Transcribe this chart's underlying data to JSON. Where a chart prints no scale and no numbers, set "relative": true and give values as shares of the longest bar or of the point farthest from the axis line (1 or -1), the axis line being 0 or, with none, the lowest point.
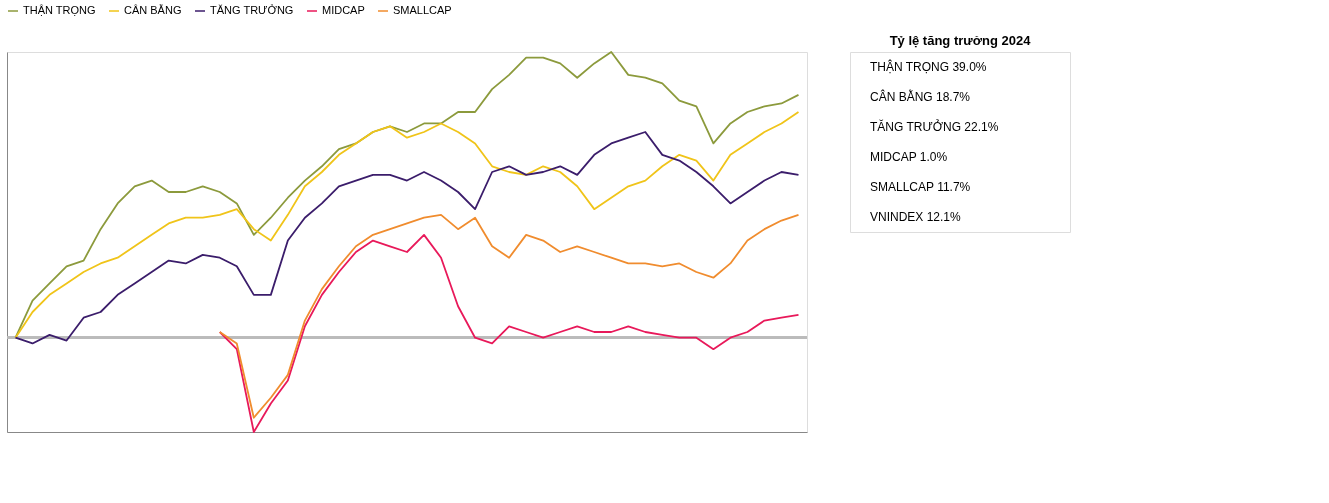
{
  "chart_data": {
    "type": "line",
    "relative": true,
    "legend": "top",
    "grid": false,
    "marker": "none",
    "line_style": "solid",
    "title": "Tỷ lệ tăng trưởng 2024",
    "annotations": [
      "THẬN TRỌNG 39.0%",
      "CÂN BẰNG 18.7%",
      "TĂNG TRƯỞNG 22.1%",
      "MIDCAP 1.0%",
      "SMALLCAP 11.7%",
      "VNINDEX 12.1%"
    ],
    "categories": [
      null,
      null,
      null,
      null,
      null,
      null,
      null,
      null,
      null,
      null,
      null,
      null,
      null,
      null,
      null,
      null,
      null,
      null,
      null,
      null,
      null,
      null,
      null,
      null,
      null,
      null,
      null,
      null,
      null,
      null,
      null,
      null,
      null,
      null,
      null,
      null,
      null,
      null,
      null,
      null,
      null,
      null,
      null,
      null,
      null,
      null,
      null
    ],
    "series": [
      {
        "name": "THẬN TRỌNG",
        "color": "#8c9a3c",
        "values": [
          0,
          0.13,
          0.19,
          0.25,
          0.27,
          0.38,
          0.47,
          0.53,
          0.55,
          0.51,
          0.51,
          0.53,
          0.51,
          0.47,
          0.36,
          0.42,
          0.49,
          0.55,
          0.6,
          0.66,
          0.68,
          0.72,
          0.74,
          0.72,
          0.75,
          0.75,
          0.79,
          0.79,
          0.87,
          0.92,
          0.98,
          0.98,
          0.96,
          0.91,
          0.96,
          1,
          0.92,
          0.91,
          0.89,
          0.83,
          0.81,
          0.68,
          0.75,
          0.79,
          0.81,
          0.82,
          0.85
        ]
      },
      {
        "name": "CÂN BẰNG",
        "color": "#f0c419",
        "values": [
          0,
          0.09,
          0.15,
          0.19,
          0.23,
          0.26,
          0.28,
          0.32,
          0.36,
          0.4,
          0.42,
          0.42,
          0.43,
          0.45,
          0.38,
          0.34,
          0.43,
          0.53,
          0.58,
          0.64,
          0.68,
          0.72,
          0.74,
          0.7,
          0.72,
          0.75,
          0.72,
          0.68,
          0.6,
          0.58,
          0.57,
          0.6,
          0.58,
          0.53,
          0.45,
          0.49,
          0.53,
          0.55,
          0.6,
          0.64,
          0.62,
          0.55,
          0.64,
          0.68,
          0.72,
          0.75,
          0.79
        ]
      },
      {
        "name": "TĂNG TRƯỞNG",
        "color": "#3b1d6b",
        "values": [
          0,
          -0.02,
          0.01,
          -0.01,
          0.07,
          0.09,
          0.15,
          0.19,
          0.23,
          0.27,
          0.26,
          0.29,
          0.28,
          0.25,
          0.15,
          0.15,
          0.34,
          0.42,
          0.47,
          0.53,
          0.55,
          0.57,
          0.57,
          0.55,
          0.58,
          0.55,
          0.51,
          0.45,
          0.58,
          0.6,
          0.57,
          0.58,
          0.6,
          0.57,
          0.64,
          0.68,
          0.7,
          0.72,
          0.64,
          0.62,
          0.58,
          0.53,
          0.47,
          0.51,
          0.55,
          0.58,
          0.57
        ]
      },
      {
        "name": "MIDCAP",
        "color": "#e8195a",
        "values": [
          null,
          null,
          null,
          null,
          null,
          null,
          null,
          null,
          null,
          null,
          null,
          null,
          0.02,
          -0.04,
          -0.33,
          -0.23,
          -0.15,
          0.04,
          0.15,
          0.23,
          0.3,
          0.34,
          0.32,
          0.3,
          0.36,
          0.28,
          0.11,
          0,
          -0.02,
          0.04,
          0.02,
          0,
          0.02,
          0.04,
          0.02,
          0.02,
          0.04,
          0.02,
          0.01,
          0,
          0,
          -0.04,
          0,
          0.02,
          0.06,
          0.07,
          0.08
        ]
      },
      {
        "name": "SMALLCAP",
        "color": "#f08c2e",
        "values": [
          null,
          null,
          null,
          null,
          null,
          null,
          null,
          null,
          null,
          null,
          null,
          null,
          0.02,
          -0.02,
          -0.28,
          -0.21,
          -0.13,
          0.06,
          0.17,
          0.25,
          0.32,
          0.36,
          0.38,
          0.4,
          0.42,
          0.43,
          0.38,
          0.42,
          0.32,
          0.28,
          0.36,
          0.34,
          0.3,
          0.32,
          0.3,
          0.28,
          0.26,
          0.26,
          0.25,
          0.26,
          0.23,
          0.21,
          0.26,
          0.34,
          0.38,
          0.41,
          0.43
        ]
      }
    ]
  }
}
